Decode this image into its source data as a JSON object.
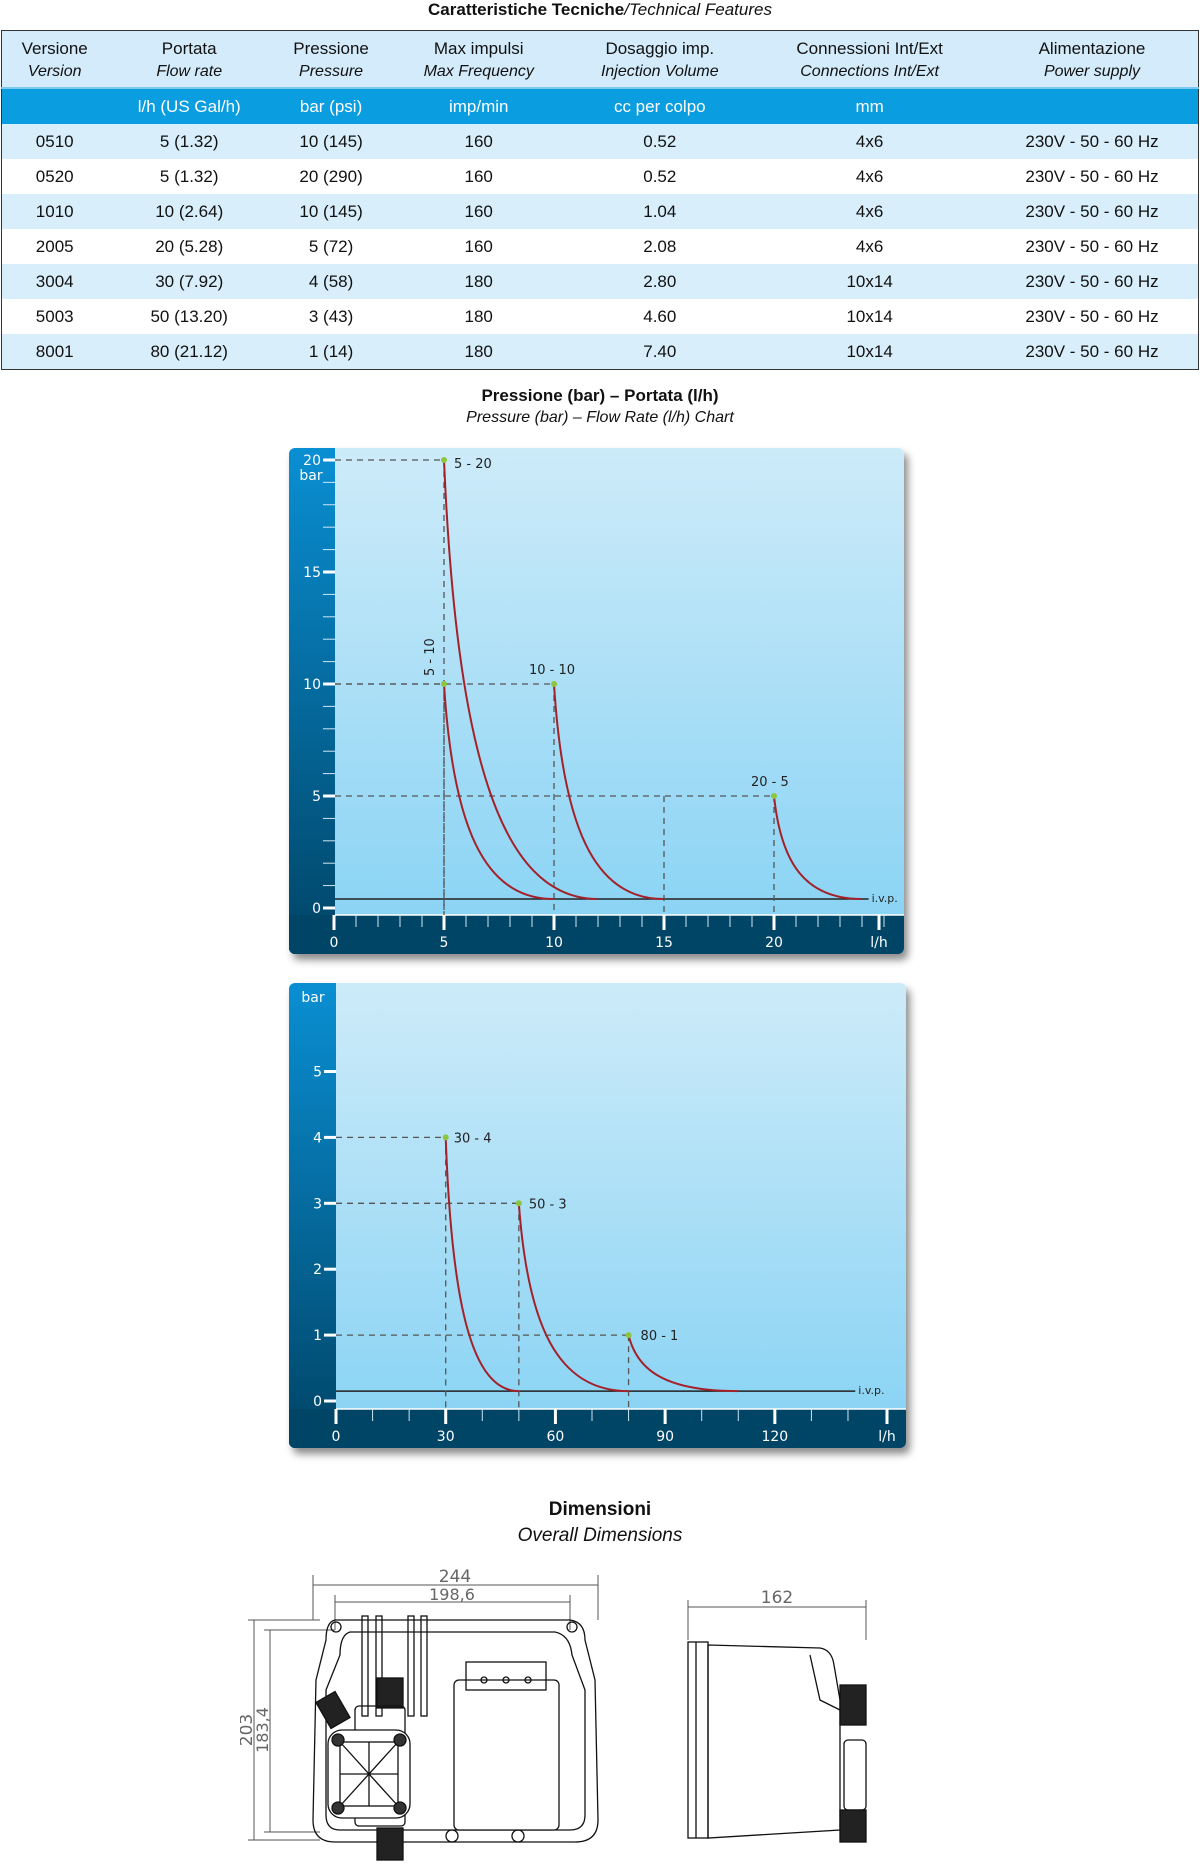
{
  "table": {
    "title_it": "Caratteristiche Tecniche",
    "title_en": "/Technical Features",
    "headers": [
      {
        "it": "Versione",
        "en": "Version",
        "unit": ""
      },
      {
        "it": "Portata",
        "en": "Flow rate",
        "unit": "l/h (US Gal/h)"
      },
      {
        "it": "Pressione",
        "en": "Pressure",
        "unit": "bar (psi)"
      },
      {
        "it": "Max impulsi",
        "en": "Max Frequency",
        "unit": "imp/min"
      },
      {
        "it": "Dosaggio imp.",
        "en": "Injection Volume",
        "unit": "cc per colpo"
      },
      {
        "it": "Connessioni Int/Ext",
        "en": "Connections Int/Ext",
        "unit": "mm"
      },
      {
        "it": "Alimentazione",
        "en": "Power supply",
        "unit": ""
      }
    ],
    "rows": [
      [
        "0510",
        "5 (1.32)",
        "10 (145)",
        "160",
        "0.52",
        "4x6",
        "230V - 50 - 60 Hz"
      ],
      [
        "0520",
        "5 (1.32)",
        "20 (290)",
        "160",
        "0.52",
        "4x6",
        "230V - 50 - 60 Hz"
      ],
      [
        "1010",
        "10 (2.64)",
        "10 (145)",
        "160",
        "1.04",
        "4x6",
        "230V - 50 - 60 Hz"
      ],
      [
        "2005",
        "20 (5.28)",
        "5 (72)",
        "160",
        "2.08",
        "4x6",
        "230V - 50 - 60 Hz"
      ],
      [
        "3004",
        "30 (7.92)",
        "4 (58)",
        "180",
        "2.80",
        "10x14",
        "230V - 50 - 60 Hz"
      ],
      [
        "5003",
        "50 (13.20)",
        "3 (43)",
        "180",
        "4.60",
        "10x14",
        "230V - 50 - 60 Hz"
      ],
      [
        "8001",
        "80 (21.12)",
        "1 (14)",
        "180",
        "7.40",
        "10x14",
        "230V - 50 - 60 Hz"
      ]
    ]
  },
  "charts_heading": {
    "title": "Pressione (bar) – Portata (l/h)",
    "subtitle": "Pressure (bar) – Flow Rate (l/h) Chart"
  },
  "chart_data": [
    {
      "type": "line",
      "xlabel": "l/h",
      "ylabel": "bar",
      "xlim": [
        0,
        25
      ],
      "ylim": [
        0,
        20
      ],
      "xticks": [
        "0",
        "5",
        "10",
        "15",
        "20"
      ],
      "yticks": [
        "0",
        "5",
        "10",
        "15",
        "20"
      ],
      "baseline_label": "i.v.p.",
      "baseline_value": 0.4,
      "series": [
        {
          "label": "5 - 10",
          "x": [
            5,
            10
          ],
          "y": [
            10,
            0.4
          ]
        },
        {
          "label": "5 - 20",
          "x": [
            5,
            12
          ],
          "y": [
            20,
            0.4
          ]
        },
        {
          "label": "10 - 10",
          "x": [
            10,
            15
          ],
          "y": [
            10,
            0.4
          ]
        },
        {
          "label": "20 - 5",
          "x": [
            20,
            24
          ],
          "y": [
            5,
            0.4
          ]
        }
      ],
      "colors": {
        "curve": "#a3222a",
        "point": "#8cc63f",
        "band": "#004466",
        "plot_top": "#cdebf9",
        "plot_bottom": "#86d2f4"
      }
    },
    {
      "type": "line",
      "xlabel": "l/h",
      "ylabel": "bar",
      "xlim": [
        0,
        150
      ],
      "ylim": [
        0,
        5.8
      ],
      "xticks": [
        "0",
        "30",
        "60",
        "90",
        "120"
      ],
      "yticks": [
        "0",
        "1",
        "2",
        "3",
        "4",
        "5"
      ],
      "baseline_label": "i.v.p.",
      "baseline_value": 0.15,
      "series": [
        {
          "label": "30 - 4",
          "x": [
            30,
            50
          ],
          "y": [
            4,
            0.15
          ]
        },
        {
          "label": "50 - 3",
          "x": [
            50,
            80
          ],
          "y": [
            3,
            0.15
          ]
        },
        {
          "label": "80 - 1",
          "x": [
            80,
            110
          ],
          "y": [
            1,
            0.15
          ]
        }
      ],
      "colors": {
        "curve": "#a3222a",
        "point": "#8cc63f",
        "band": "#004466",
        "plot_top": "#cdebf9",
        "plot_bottom": "#86d2f4"
      }
    }
  ],
  "dimensions": {
    "title": "Dimensioni",
    "subtitle": "Overall Dimensions",
    "front_width": "244",
    "front_inner_width": "198,6",
    "front_height": "203",
    "front_inner_height": "183,4",
    "side_depth": "162"
  }
}
